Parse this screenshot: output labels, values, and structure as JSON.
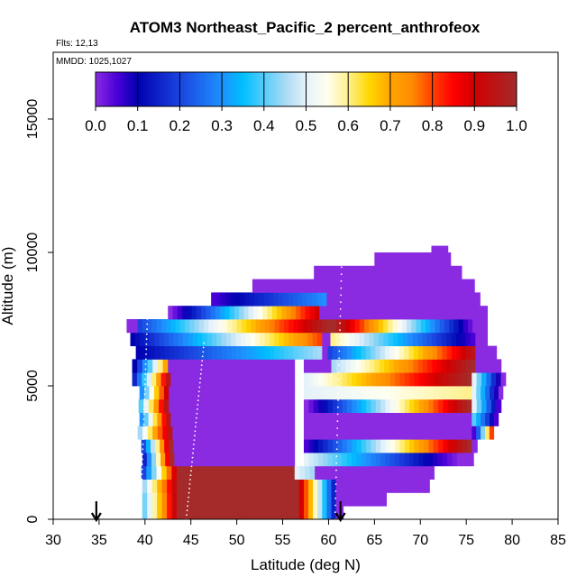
{
  "chart_data": {
    "type": "heatmap",
    "title": "ATOM3 Northeast_Pacific_2 percent_anthrofeox",
    "flights_label": "Flts: 12,13",
    "dates_label": "MMDD: 1025,1027",
    "xlabel": "Latitude (deg N)",
    "ylabel": "Altitude (m)",
    "xlim": [
      30,
      85
    ],
    "ylim": [
      0,
      17500
    ],
    "x_ticks": [
      30,
      35,
      40,
      45,
      50,
      55,
      60,
      65,
      70,
      75,
      80,
      85
    ],
    "y_ticks": [
      0,
      5000,
      10000,
      15000
    ],
    "colorbar": {
      "range": [
        0.0,
        1.0
      ],
      "ticks": [
        "0.0",
        "0.1",
        "0.2",
        "0.3",
        "0.4",
        "0.5",
        "0.6",
        "0.7",
        "0.8",
        "0.9",
        "1.0"
      ],
      "placement": "top"
    },
    "arrows_at_latitude": [
      34.7,
      61.3
    ],
    "row_height_m": 500,
    "profiles": [
      {
        "lat": [
          39.5,
          44.5,
          70.0
        ],
        "alt": [
          0,
          12500
        ]
      },
      {
        "lat": [
          44.5,
          57.3,
          60.7
        ],
        "alt": [
          0,
          11000
        ]
      },
      {
        "lat": [
          60.7,
          66.0,
          82.0
        ],
        "alt": [
          0,
          17500
        ]
      }
    ],
    "rows": [
      {
        "alt": 250,
        "segments": [
          {
            "from": 39.7,
            "to": 44.0,
            "v0": 0.42,
            "v1": 1.0
          },
          {
            "from": 44.0,
            "to": 56.3,
            "v0": 1.0,
            "v1": 1.0
          },
          {
            "from": 56.3,
            "to": 60.8,
            "v0": 1.0,
            "v1": 0.15
          },
          {
            "from": 60.8,
            "to": 61.6,
            "v0": 0.0,
            "v1": 0.0
          }
        ]
      },
      {
        "alt": 750,
        "segments": [
          {
            "from": 39.7,
            "to": 44.0,
            "v0": 0.42,
            "v1": 1.0
          },
          {
            "from": 44.0,
            "to": 56.3,
            "v0": 1.0,
            "v1": 1.0
          },
          {
            "from": 56.3,
            "to": 60.8,
            "v0": 1.0,
            "v1": 0.15
          },
          {
            "from": 60.8,
            "to": 66.3,
            "v0": 0.0,
            "v1": 0.0
          }
        ]
      },
      {
        "alt": 1250,
        "segments": [
          {
            "from": 39.7,
            "to": 44.0,
            "v0": 0.45,
            "v1": 1.0
          },
          {
            "from": 44.0,
            "to": 56.3,
            "v0": 1.0,
            "v1": 1.0
          },
          {
            "from": 56.3,
            "to": 60.8,
            "v0": 1.0,
            "v1": 0.15
          },
          {
            "from": 60.8,
            "to": 71.0,
            "v0": 0.0,
            "v1": 0.0
          }
        ]
      },
      {
        "alt": 1750,
        "segments": [
          {
            "from": 39.6,
            "to": 44.0,
            "v0": 0.2,
            "v1": 1.0
          },
          {
            "from": 44.0,
            "to": 56.3,
            "v0": 1.0,
            "v1": 1.0
          },
          {
            "from": 56.3,
            "to": 58.5,
            "v0": 0.5,
            "v1": 0.45
          },
          {
            "from": 58.5,
            "to": 71.5,
            "v0": 0.0,
            "v1": 0.0
          }
        ]
      },
      {
        "alt": 2250,
        "segments": [
          {
            "from": 39.7,
            "to": 43.2,
            "v0": 0.15,
            "v1": 1.0
          },
          {
            "from": 43.2,
            "to": 56.3,
            "v0": 0.0,
            "v1": 0.0
          },
          {
            "from": 57.3,
            "to": 74.5,
            "v0": 0.5,
            "v1": 0.0
          },
          {
            "from": 74.5,
            "to": 75.8,
            "v0": 0.0,
            "v1": 0.0
          }
        ]
      },
      {
        "alt": 2750,
        "segments": [
          {
            "from": 39.6,
            "to": 43.1,
            "v0": 0.2,
            "v1": 1.0
          },
          {
            "from": 43.1,
            "to": 56.3,
            "v0": 0.0,
            "v1": 0.0
          },
          {
            "from": 57.3,
            "to": 75.6,
            "v0": 0.05,
            "v1": 1.0
          },
          {
            "from": 75.6,
            "to": 76.2,
            "v0": 0.0,
            "v1": 0.0
          }
        ]
      },
      {
        "alt": 3250,
        "segments": [
          {
            "from": 39.2,
            "to": 43.0,
            "v0": 0.45,
            "v1": 0.95
          },
          {
            "from": 43.0,
            "to": 56.3,
            "v0": 0.0,
            "v1": 0.0
          },
          {
            "from": 57.3,
            "to": 75.6,
            "v0": 0.0,
            "v1": 0.0
          },
          {
            "from": 75.6,
            "to": 78.0,
            "v0": 0.05,
            "v1": 0.8
          }
        ]
      },
      {
        "alt": 3750,
        "segments": [
          {
            "from": 39.4,
            "to": 42.8,
            "v0": 0.3,
            "v1": 0.95
          },
          {
            "from": 42.8,
            "to": 56.3,
            "v0": 0.0,
            "v1": 0.0
          },
          {
            "from": 57.3,
            "to": 75.6,
            "v0": 0.0,
            "v1": 0.0
          },
          {
            "from": 75.6,
            "to": 78.5,
            "v0": 0.4,
            "v1": 0.05
          }
        ]
      },
      {
        "alt": 4250,
        "segments": [
          {
            "from": 39.3,
            "to": 42.6,
            "v0": 0.4,
            "v1": 0.95
          },
          {
            "from": 42.6,
            "to": 56.3,
            "v0": 0.0,
            "v1": 0.0
          },
          {
            "from": 57.3,
            "to": 75.6,
            "v0": 0.0,
            "v1": 1.0
          },
          {
            "from": 75.6,
            "to": 78.8,
            "v0": 0.5,
            "v1": 0.05
          }
        ]
      },
      {
        "alt": 4750,
        "segments": [
          {
            "from": 39.4,
            "to": 42.6,
            "v0": 0.3,
            "v1": 0.9
          },
          {
            "from": 42.6,
            "to": 56.3,
            "v0": 0.0,
            "v1": 0.0
          },
          {
            "from": 57.3,
            "to": 75.6,
            "v0": 0.5,
            "v1": 0.6
          },
          {
            "from": 75.6,
            "to": 79.0,
            "v0": 0.5,
            "v1": 0.0
          }
        ]
      },
      {
        "alt": 5250,
        "segments": [
          {
            "from": 38.6,
            "to": 42.8,
            "v0": 0.15,
            "v1": 0.95
          },
          {
            "from": 42.8,
            "to": 56.3,
            "v0": 0.0,
            "v1": 0.0
          },
          {
            "from": 57.3,
            "to": 75.6,
            "v0": 0.5,
            "v1": 1.0
          },
          {
            "from": 75.6,
            "to": 79.3,
            "v0": 0.5,
            "v1": 0.0
          }
        ]
      },
      {
        "alt": 5750,
        "segments": [
          {
            "from": 38.6,
            "to": 42.5,
            "v0": 0.1,
            "v1": 0.7
          },
          {
            "from": 42.5,
            "to": 56.3,
            "v0": 0.0,
            "v1": 0.0
          },
          {
            "from": 57.3,
            "to": 60.3,
            "v0": 0.0,
            "v1": 0.0
          },
          {
            "from": 60.3,
            "to": 76.0,
            "v0": 0.45,
            "v1": 1.0
          },
          {
            "from": 76.0,
            "to": 78.8,
            "v0": 0.0,
            "v1": 0.0
          }
        ]
      },
      {
        "alt": 6250,
        "segments": [
          {
            "from": 39.0,
            "to": 59.3,
            "v0": 0.1,
            "v1": 0.45
          },
          {
            "from": 59.3,
            "to": 59.9,
            "v0": 0.0,
            "v1": 0.0
          },
          {
            "from": 59.9,
            "to": 76.0,
            "v0": 0.2,
            "v1": 0.95
          },
          {
            "from": 76.0,
            "to": 78.3,
            "v0": 0.0,
            "v1": 0.0
          }
        ]
      },
      {
        "alt": 6750,
        "segments": [
          {
            "from": 38.4,
            "to": 59.3,
            "v0": 0.1,
            "v1": 0.8
          },
          {
            "from": 59.3,
            "to": 60.2,
            "v0": 0.0,
            "v1": 0.0
          },
          {
            "from": 60.2,
            "to": 76.0,
            "v0": 0.6,
            "v1": 0.05
          },
          {
            "from": 76.0,
            "to": 77.3,
            "v0": 0.0,
            "v1": 0.0
          }
        ]
      },
      {
        "alt": 7250,
        "segments": [
          {
            "from": 38.0,
            "to": 39.2,
            "v0": 0.0,
            "v1": 0.0
          },
          {
            "from": 39.2,
            "to": 60.3,
            "v0": 0.2,
            "v1": 1.0
          },
          {
            "from": 60.3,
            "to": 76.2,
            "v0": 1.0,
            "v1": 0.0
          },
          {
            "from": 76.2,
            "to": 77.3,
            "v0": 0.0,
            "v1": 0.0
          }
        ]
      },
      {
        "alt": 7750,
        "segments": [
          {
            "from": 42.5,
            "to": 59.0,
            "v0": 0.0,
            "v1": 0.9
          },
          {
            "from": 59.0,
            "to": 67.0,
            "v0": 0.0,
            "v1": 0.0
          },
          {
            "from": 67.0,
            "to": 73.8,
            "v0": 0.0,
            "v1": 0.0
          },
          {
            "from": 73.8,
            "to": 77.3,
            "v0": 0.0,
            "v1": 0.0
          }
        ]
      },
      {
        "alt": 8250,
        "segments": [
          {
            "from": 47.2,
            "to": 59.8,
            "v0": 0.05,
            "v1": 0.3
          },
          {
            "from": 59.8,
            "to": 76.5,
            "v0": 0.0,
            "v1": 0.0
          }
        ]
      },
      {
        "alt": 8750,
        "segments": [
          {
            "from": 51.7,
            "to": 75.9,
            "v0": 0.0,
            "v1": 0.0
          }
        ]
      },
      {
        "alt": 9250,
        "segments": [
          {
            "from": 58.4,
            "to": 74.5,
            "v0": 0.0,
            "v1": 0.0
          }
        ]
      },
      {
        "alt": 9750,
        "segments": [
          {
            "from": 65.0,
            "to": 73.3,
            "v0": 0.0,
            "v1": 0.0
          }
        ]
      },
      {
        "alt": 10000,
        "segments": [
          {
            "from": 71.2,
            "to": 73.0,
            "v0": 0.0,
            "v1": 0.0
          }
        ]
      }
    ]
  }
}
